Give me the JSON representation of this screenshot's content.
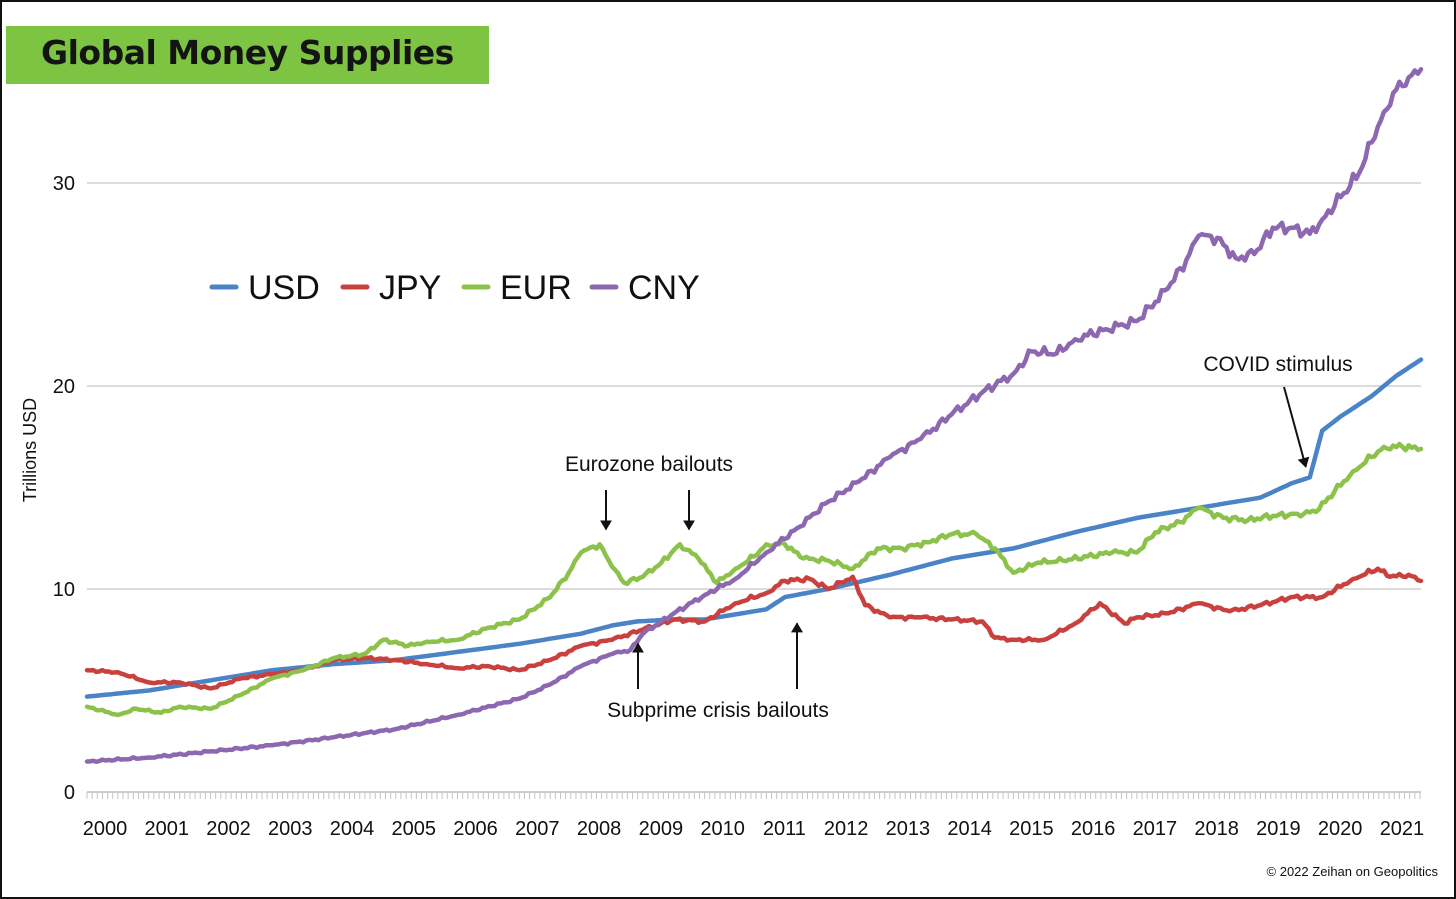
{
  "title": "Global Money Supplies",
  "copyright": "© 2022 Zeihan on Geopolitics",
  "colors": {
    "title_bg": "#7dc443",
    "USD": "#4a84c6",
    "JPY": "#c9413e",
    "EUR": "#8cc14b",
    "CNY": "#8d68b1",
    "grid": "#d0d0d0"
  },
  "chart_data": {
    "type": "line",
    "title": "Global Money Supplies",
    "xlabel": "",
    "ylabel": "Trillions USD",
    "xlim": [
      2000.0,
      2021.6
    ],
    "ylim": [
      0,
      36
    ],
    "y_ticks": [
      0,
      10,
      20,
      30
    ],
    "x_tick_labels": [
      "2000",
      "2001",
      "2002",
      "2003",
      "2004",
      "2005",
      "2006",
      "2007",
      "2008",
      "2009",
      "2010",
      "2011",
      "2012",
      "2013",
      "2014",
      "2015",
      "2016",
      "2017",
      "2018",
      "2019",
      "2020",
      "2021"
    ],
    "grid": "horizontal",
    "legend_position": "upper-left",
    "series": [
      {
        "name": "USD",
        "color": "#4a84c6",
        "points": [
          [
            2000.0,
            4.7
          ],
          [
            2001.0,
            5.0
          ],
          [
            2002.0,
            5.5
          ],
          [
            2003.0,
            6.0
          ],
          [
            2004.0,
            6.3
          ],
          [
            2005.0,
            6.5
          ],
          [
            2006.0,
            6.9
          ],
          [
            2007.0,
            7.3
          ],
          [
            2008.0,
            7.8
          ],
          [
            2008.5,
            8.2
          ],
          [
            2008.9,
            8.4
          ],
          [
            2009.5,
            8.5
          ],
          [
            2010.0,
            8.5
          ],
          [
            2011.0,
            9.0
          ],
          [
            2011.3,
            9.6
          ],
          [
            2012.0,
            10.0
          ],
          [
            2013.0,
            10.7
          ],
          [
            2014.0,
            11.5
          ],
          [
            2015.0,
            12.0
          ],
          [
            2016.0,
            12.8
          ],
          [
            2017.0,
            13.5
          ],
          [
            2018.0,
            14.0
          ],
          [
            2019.0,
            14.5
          ],
          [
            2019.5,
            15.2
          ],
          [
            2019.8,
            15.5
          ],
          [
            2020.0,
            17.8
          ],
          [
            2020.3,
            18.5
          ],
          [
            2020.8,
            19.5
          ],
          [
            2021.2,
            20.5
          ],
          [
            2021.6,
            21.3
          ]
        ]
      },
      {
        "name": "JPY",
        "color": "#c9413e",
        "points": [
          [
            2000.0,
            6.0
          ],
          [
            2000.5,
            5.9
          ],
          [
            2001.0,
            5.4
          ],
          [
            2001.5,
            5.4
          ],
          [
            2002.0,
            5.1
          ],
          [
            2002.5,
            5.6
          ],
          [
            2003.0,
            5.8
          ],
          [
            2003.5,
            6.0
          ],
          [
            2004.0,
            6.5
          ],
          [
            2004.5,
            6.6
          ],
          [
            2005.0,
            6.5
          ],
          [
            2005.5,
            6.3
          ],
          [
            2006.0,
            6.1
          ],
          [
            2006.5,
            6.2
          ],
          [
            2007.0,
            6.0
          ],
          [
            2007.5,
            6.5
          ],
          [
            2008.0,
            7.2
          ],
          [
            2008.5,
            7.5
          ],
          [
            2009.0,
            8.0
          ],
          [
            2009.5,
            8.5
          ],
          [
            2010.0,
            8.4
          ],
          [
            2010.5,
            9.3
          ],
          [
            2011.0,
            9.8
          ],
          [
            2011.3,
            10.4
          ],
          [
            2011.7,
            10.5
          ],
          [
            2012.0,
            10.0
          ],
          [
            2012.4,
            10.6
          ],
          [
            2012.6,
            9.2
          ],
          [
            2013.0,
            8.6
          ],
          [
            2013.5,
            8.6
          ],
          [
            2014.0,
            8.5
          ],
          [
            2014.5,
            8.4
          ],
          [
            2014.7,
            7.6
          ],
          [
            2015.0,
            7.5
          ],
          [
            2015.5,
            7.5
          ],
          [
            2016.0,
            8.3
          ],
          [
            2016.4,
            9.3
          ],
          [
            2016.8,
            8.3
          ],
          [
            2017.0,
            8.6
          ],
          [
            2017.5,
            8.8
          ],
          [
            2018.0,
            9.3
          ],
          [
            2018.5,
            8.9
          ],
          [
            2019.0,
            9.2
          ],
          [
            2019.5,
            9.6
          ],
          [
            2020.0,
            9.6
          ],
          [
            2020.5,
            10.5
          ],
          [
            2020.9,
            11.0
          ],
          [
            2021.1,
            10.6
          ],
          [
            2021.4,
            10.7
          ],
          [
            2021.6,
            10.4
          ]
        ]
      },
      {
        "name": "EUR",
        "color": "#8cc14b",
        "points": [
          [
            2000.0,
            4.2
          ],
          [
            2000.5,
            3.8
          ],
          [
            2000.8,
            4.1
          ],
          [
            2001.2,
            3.9
          ],
          [
            2001.5,
            4.2
          ],
          [
            2002.0,
            4.1
          ],
          [
            2002.5,
            4.8
          ],
          [
            2003.0,
            5.6
          ],
          [
            2003.5,
            6.0
          ],
          [
            2004.0,
            6.6
          ],
          [
            2004.5,
            6.8
          ],
          [
            2004.8,
            7.5
          ],
          [
            2005.2,
            7.2
          ],
          [
            2005.5,
            7.4
          ],
          [
            2006.0,
            7.5
          ],
          [
            2006.5,
            8.1
          ],
          [
            2007.0,
            8.5
          ],
          [
            2007.5,
            9.6
          ],
          [
            2007.8,
            10.8
          ],
          [
            2008.0,
            11.8
          ],
          [
            2008.3,
            12.2
          ],
          [
            2008.5,
            11.1
          ],
          [
            2008.7,
            10.3
          ],
          [
            2009.0,
            10.6
          ],
          [
            2009.3,
            11.3
          ],
          [
            2009.6,
            12.2
          ],
          [
            2009.9,
            11.5
          ],
          [
            2010.2,
            10.3
          ],
          [
            2010.5,
            11.0
          ],
          [
            2010.8,
            11.6
          ],
          [
            2011.0,
            12.2
          ],
          [
            2011.3,
            12.2
          ],
          [
            2011.6,
            11.5
          ],
          [
            2012.0,
            11.4
          ],
          [
            2012.4,
            11.0
          ],
          [
            2012.8,
            12.0
          ],
          [
            2013.2,
            12.0
          ],
          [
            2013.6,
            12.3
          ],
          [
            2014.0,
            12.7
          ],
          [
            2014.4,
            12.7
          ],
          [
            2014.7,
            12.0
          ],
          [
            2015.0,
            10.8
          ],
          [
            2015.4,
            11.3
          ],
          [
            2015.8,
            11.4
          ],
          [
            2016.2,
            11.6
          ],
          [
            2016.6,
            11.8
          ],
          [
            2017.0,
            11.8
          ],
          [
            2017.3,
            12.8
          ],
          [
            2017.7,
            13.3
          ],
          [
            2018.0,
            14.0
          ],
          [
            2018.4,
            13.5
          ],
          [
            2018.8,
            13.4
          ],
          [
            2019.2,
            13.6
          ],
          [
            2019.6,
            13.7
          ],
          [
            2019.9,
            13.8
          ],
          [
            2020.2,
            14.8
          ],
          [
            2020.5,
            15.8
          ],
          [
            2020.8,
            16.5
          ],
          [
            2021.0,
            17.0
          ],
          [
            2021.3,
            17.0
          ],
          [
            2021.6,
            16.9
          ]
        ]
      },
      {
        "name": "CNY",
        "color": "#8d68b1",
        "points": [
          [
            2000.0,
            1.5
          ],
          [
            2001.0,
            1.7
          ],
          [
            2002.0,
            2.0
          ],
          [
            2003.0,
            2.3
          ],
          [
            2004.0,
            2.7
          ],
          [
            2005.0,
            3.1
          ],
          [
            2006.0,
            3.8
          ],
          [
            2007.0,
            4.6
          ],
          [
            2007.5,
            5.3
          ],
          [
            2008.0,
            6.2
          ],
          [
            2008.5,
            6.8
          ],
          [
            2008.8,
            7.0
          ],
          [
            2009.0,
            7.8
          ],
          [
            2009.5,
            8.8
          ],
          [
            2010.0,
            9.7
          ],
          [
            2010.5,
            10.5
          ],
          [
            2011.0,
            11.8
          ],
          [
            2011.5,
            13.0
          ],
          [
            2012.0,
            14.3
          ],
          [
            2012.5,
            15.3
          ],
          [
            2013.0,
            16.5
          ],
          [
            2013.5,
            17.4
          ],
          [
            2014.0,
            18.6
          ],
          [
            2014.5,
            19.7
          ],
          [
            2015.0,
            20.6
          ],
          [
            2015.3,
            21.7
          ],
          [
            2015.7,
            21.6
          ],
          [
            2016.0,
            22.3
          ],
          [
            2016.5,
            22.8
          ],
          [
            2017.0,
            23.2
          ],
          [
            2017.5,
            24.8
          ],
          [
            2017.8,
            26.2
          ],
          [
            2018.0,
            27.4
          ],
          [
            2018.3,
            27.3
          ],
          [
            2018.6,
            26.3
          ],
          [
            2018.9,
            26.5
          ],
          [
            2019.2,
            27.8
          ],
          [
            2019.5,
            27.8
          ],
          [
            2019.8,
            27.5
          ],
          [
            2020.0,
            28.2
          ],
          [
            2020.3,
            29.3
          ],
          [
            2020.6,
            30.5
          ],
          [
            2020.8,
            32.0
          ],
          [
            2021.0,
            33.5
          ],
          [
            2021.2,
            34.6
          ],
          [
            2021.4,
            35.2
          ],
          [
            2021.6,
            35.6
          ]
        ]
      }
    ],
    "annotations": [
      {
        "text": "Eurozone bailouts",
        "arrows_to": [
          [
            2008.3,
            12.2
          ],
          [
            2009.6,
            12.2
          ]
        ]
      },
      {
        "text": "Subprime crisis bailouts",
        "arrows_to": [
          [
            2008.8,
            7.9
          ],
          [
            2011.3,
            8.9
          ]
        ]
      },
      {
        "text": "COVID stimulus",
        "arrows_to": [
          [
            2019.8,
            17.1
          ]
        ]
      }
    ]
  }
}
